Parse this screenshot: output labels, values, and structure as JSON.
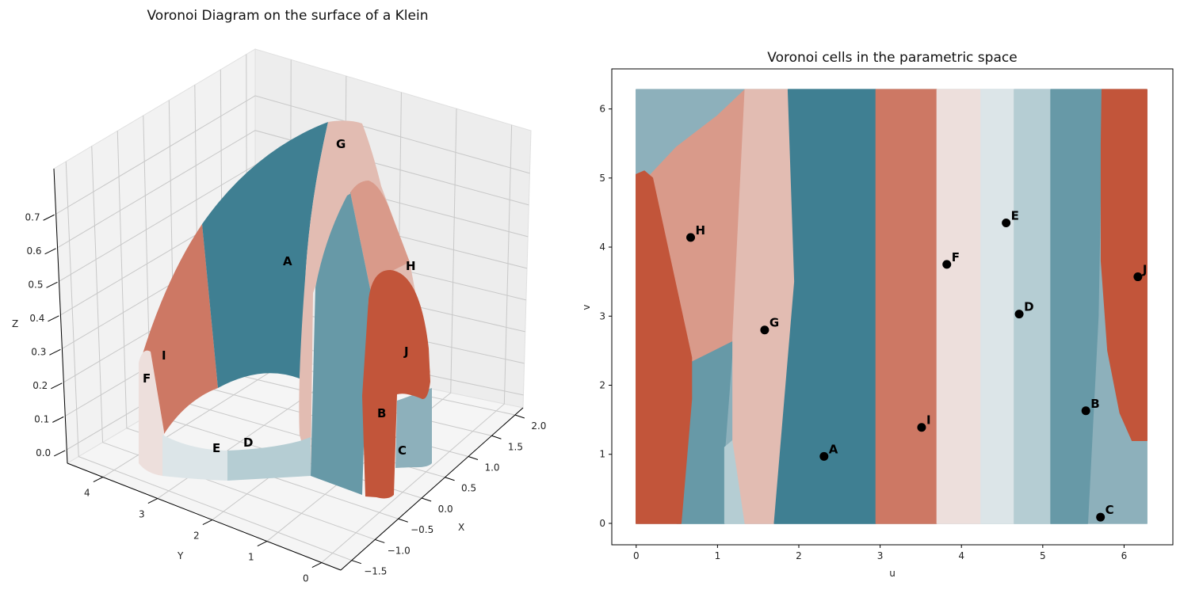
{
  "chart_data": [
    {
      "type": "surface",
      "title": "Voronoi Diagram on the surface of a Klein",
      "xlabel": "X",
      "ylabel": "Y",
      "zlabel": "Z",
      "x_ticks": [
        "−1.5",
        "−1.0",
        "−0.5",
        "0.0",
        "0.5",
        "1.0",
        "1.5",
        "2.0"
      ],
      "y_ticks": [
        "0",
        "1",
        "2",
        "3",
        "4"
      ],
      "z_ticks": [
        "0.0",
        "0.1",
        "0.2",
        "0.3",
        "0.4",
        "0.5",
        "0.6",
        "0.7"
      ],
      "site_labels": [
        "A",
        "B",
        "C",
        "D",
        "E",
        "F",
        "G",
        "H",
        "I",
        "J"
      ],
      "colors": {
        "A": "#3f7f92",
        "B": "#6799a7",
        "C": "#8db0bb",
        "D": "#b5cdd3",
        "E": "#dce5e8",
        "F": "#eddfdc",
        "G": "#e2bcb2",
        "H": "#d99a8a",
        "I": "#cd7864",
        "J": "#c2553a"
      }
    },
    {
      "type": "scatter",
      "title": "Voronoi cells in the parametric space",
      "xlabel": "u",
      "ylabel": "v",
      "xlim": [
        -0.3,
        6.6
      ],
      "ylim": [
        -0.31,
        6.58
      ],
      "x_ticks": [
        0,
        1,
        2,
        3,
        4,
        5,
        6
      ],
      "y_ticks": [
        0,
        1,
        2,
        3,
        4,
        5,
        6
      ],
      "grid": false,
      "sites": [
        {
          "label": "A",
          "u": 2.31,
          "v": 0.97
        },
        {
          "label": "B",
          "u": 5.53,
          "v": 1.63
        },
        {
          "label": "C",
          "u": 5.71,
          "v": 0.09
        },
        {
          "label": "D",
          "u": 4.71,
          "v": 3.03
        },
        {
          "label": "E",
          "u": 4.55,
          "v": 4.35
        },
        {
          "label": "F",
          "u": 3.82,
          "v": 3.75
        },
        {
          "label": "G",
          "u": 1.58,
          "v": 2.8
        },
        {
          "label": "H",
          "u": 0.67,
          "v": 4.14
        },
        {
          "label": "I",
          "u": 3.51,
          "v": 1.39
        },
        {
          "label": "J",
          "u": 6.17,
          "v": 3.57
        }
      ],
      "cells": [
        {
          "site": "C",
          "color": "#8db0bb",
          "polygon": [
            [
              0,
              0
            ],
            [
              6.28,
              0
            ],
            [
              6.28,
              6.28
            ],
            [
              0,
              6.28
            ]
          ]
        },
        {
          "site": "B",
          "color": "#6799a7",
          "polygon": [
            [
              0.5,
              0
            ],
            [
              1.09,
              0
            ],
            [
              1.09,
              1.1
            ],
            [
              1.19,
              2.65
            ],
            [
              0.68,
              2.35
            ],
            [
              0.6,
              1.8
            ]
          ]
        },
        {
          "site": "D",
          "color": "#b5cdd3",
          "polygon": [
            [
              1.09,
              0
            ],
            [
              1.34,
              0
            ],
            [
              1.19,
              1.2
            ],
            [
              1.09,
              1.1
            ]
          ]
        },
        {
          "site": "H",
          "color": "#d99a8a",
          "polygon": [
            [
              0.1,
              4.95
            ],
            [
              0.5,
              5.45
            ],
            [
              1.0,
              5.9
            ],
            [
              1.34,
              6.28
            ],
            [
              1.19,
              2.65
            ],
            [
              0.68,
              2.35
            ]
          ]
        },
        {
          "site": "G",
          "color": "#e2bcb2",
          "polygon": [
            [
              1.34,
              6.28
            ],
            [
              1.87,
              6.28
            ],
            [
              1.95,
              3.5
            ],
            [
              1.7,
              0
            ],
            [
              1.34,
              0
            ],
            [
              1.19,
              1.2
            ],
            [
              1.19,
              2.7
            ]
          ]
        },
        {
          "site": "A",
          "color": "#3f7f92",
          "polygon": [
            [
              1.87,
              6.28
            ],
            [
              2.95,
              6.28
            ],
            [
              2.95,
              0
            ],
            [
              1.7,
              0
            ],
            [
              1.95,
              3.5
            ]
          ]
        },
        {
          "site": "I",
          "color": "#cd7864",
          "polygon": [
            [
              2.95,
              0
            ],
            [
              3.7,
              0
            ],
            [
              3.7,
              6.28
            ],
            [
              2.95,
              6.28
            ]
          ]
        },
        {
          "site": "F",
          "color": "#eddfdc",
          "polygon": [
            [
              3.7,
              0
            ],
            [
              4.24,
              0
            ],
            [
              4.24,
              6.28
            ],
            [
              3.7,
              6.28
            ]
          ]
        },
        {
          "site": "E",
          "color": "#dce5e8",
          "polygon": [
            [
              4.24,
              0
            ],
            [
              4.65,
              0
            ],
            [
              4.65,
              6.28
            ],
            [
              4.24,
              6.28
            ]
          ]
        },
        {
          "site": "D",
          "color": "#b5cdd3",
          "polygon": [
            [
              4.65,
              0
            ],
            [
              5.1,
              0
            ],
            [
              5.1,
              6.28
            ],
            [
              4.65,
              6.28
            ]
          ]
        },
        {
          "site": "B",
          "color": "#6799a7",
          "polygon": [
            [
              5.1,
              0
            ],
            [
              5.55,
              0
            ],
            [
              5.68,
              3.0
            ],
            [
              5.73,
              6.28
            ],
            [
              5.1,
              6.28
            ]
          ]
        },
        {
          "site": "J",
          "color": "#c2553a",
          "polygon": [
            [
              5.73,
              6.28
            ],
            [
              6.28,
              6.28
            ],
            [
              6.28,
              1.2
            ],
            [
              6.1,
              1.2
            ],
            [
              5.95,
              1.6
            ],
            [
              5.8,
              2.5
            ],
            [
              5.72,
              3.8
            ],
            [
              5.72,
              5.5
            ]
          ]
        },
        {
          "site": "J",
          "color": "#c2553a",
          "polygon": [
            [
              0,
              0
            ],
            [
              0,
              5.05
            ],
            [
              0.1,
              5.1
            ],
            [
              0.2,
              5.0
            ],
            [
              0.68,
              2.4
            ],
            [
              0.68,
              1.8
            ],
            [
              0.55,
              0
            ]
          ]
        }
      ]
    }
  ]
}
